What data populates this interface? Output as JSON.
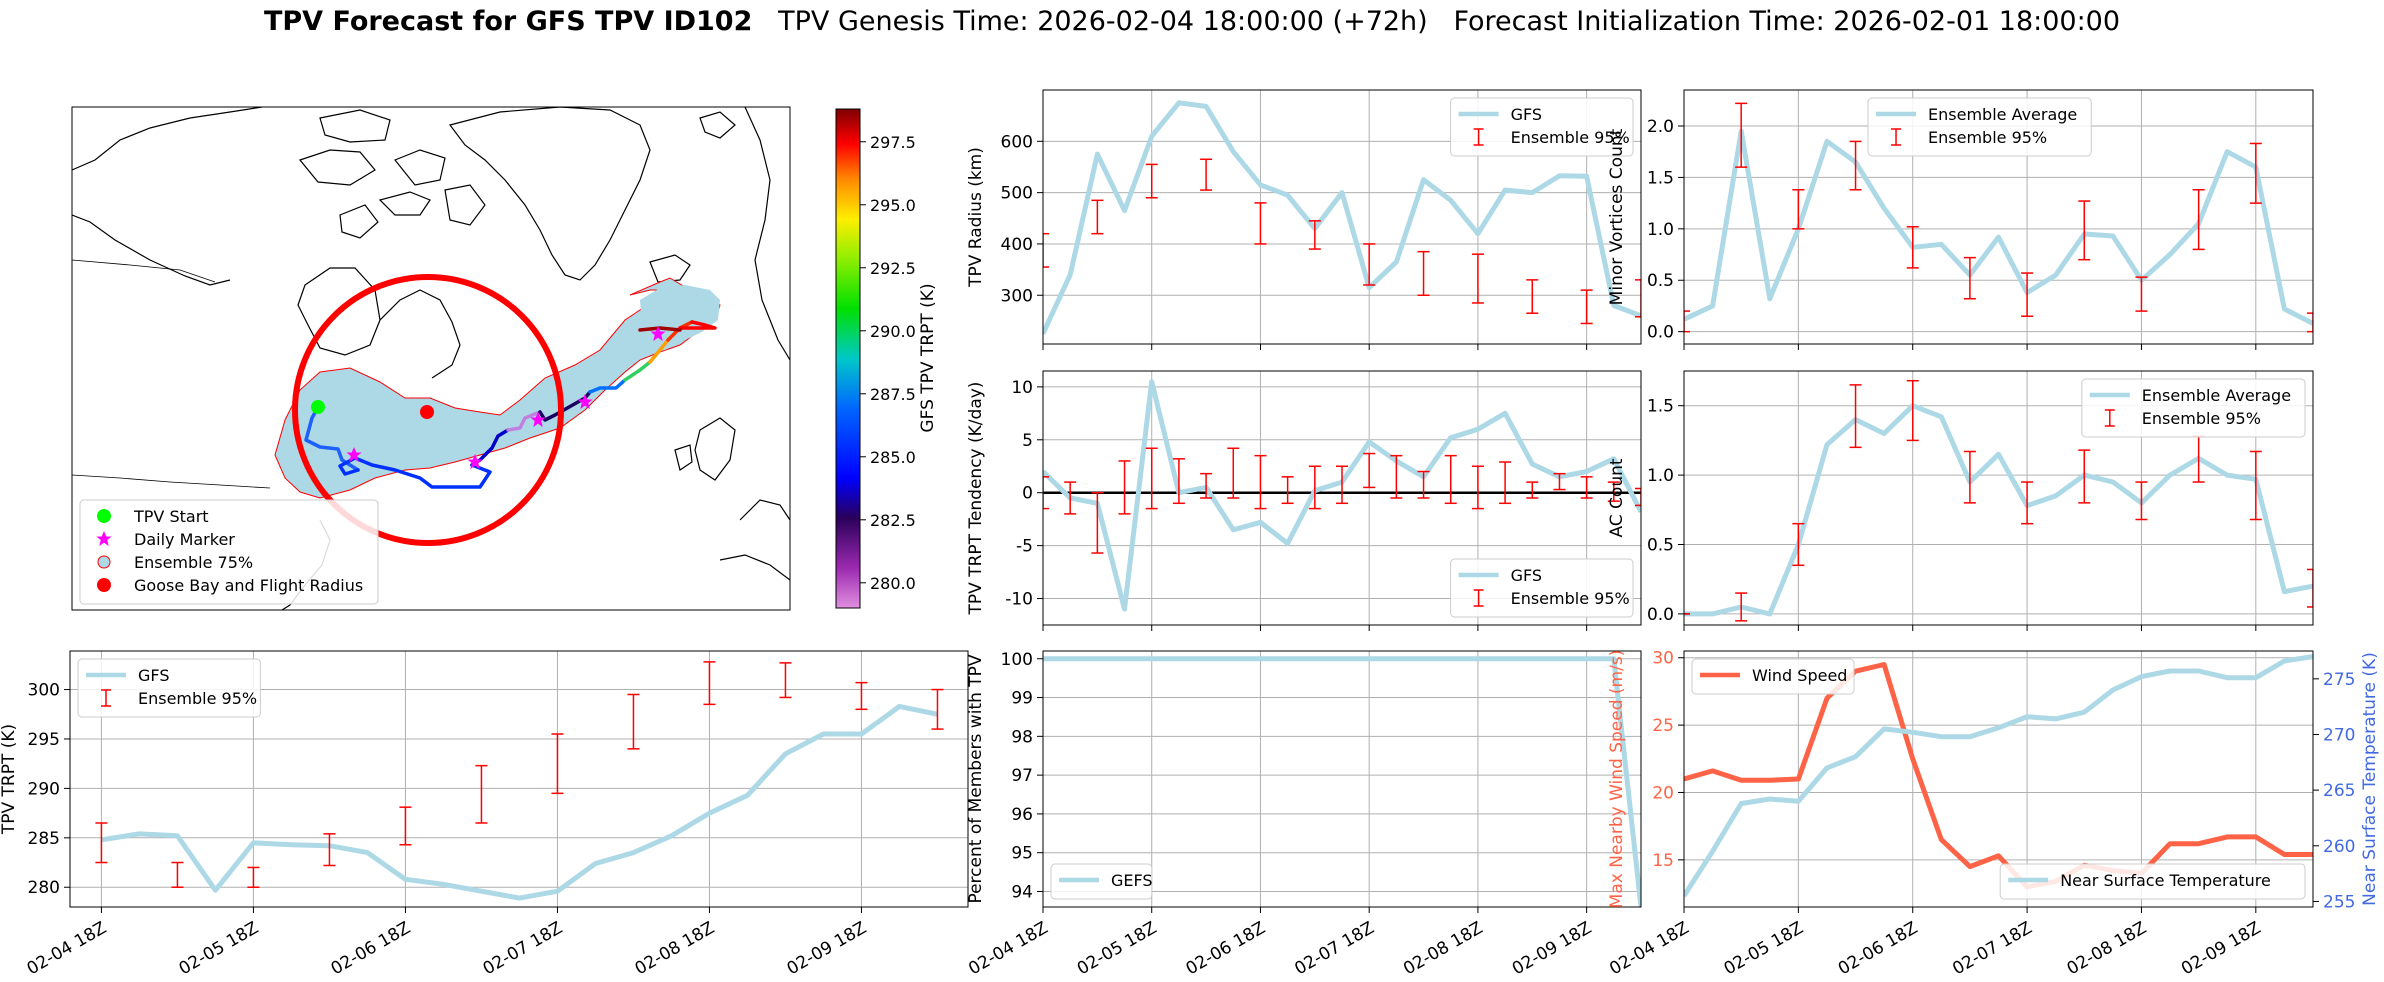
{
  "title": {
    "bold": "TPV Forecast for GFS TPV ID102",
    "genesis": "TPV Genesis Time: 2026-02-04 18:00:00 (+72h)",
    "init": "Forecast Initialization Time: 2026-02-01 18:00:00"
  },
  "colors": {
    "light_blue": "#add8e6",
    "errbar": "#ff0000",
    "tomato": "#ff6347",
    "royal_blue": "#4169e1",
    "grid": "#b0b0b0"
  },
  "time_axis": {
    "tick_labels": [
      "02-04 18Z",
      "02-05 18Z",
      "02-06 18Z",
      "02-07 18Z",
      "02-08 18Z",
      "02-09 18Z"
    ]
  },
  "map": {
    "colorbar": {
      "label": "GFS TPV TRPT (K)",
      "ticks": [
        280.0,
        282.5,
        285.0,
        287.5,
        290.0,
        292.5,
        295.0,
        297.5
      ],
      "tick_labels": [
        "280.0",
        "282.5",
        "285.0",
        "287.5",
        "290.0",
        "292.5",
        "295.0",
        "297.5"
      ],
      "range": [
        279.0,
        298.8
      ],
      "colormap": "nipy_spectral-like (violet → purple → blue → cyan → green → yellow → orange → red → dark red)"
    },
    "legend": [
      {
        "label": "TPV Start",
        "marker": "green-circle",
        "color": "#00ff00"
      },
      {
        "label": "Daily Marker",
        "marker": "magenta-star",
        "color": "#ff00ff"
      },
      {
        "label": "Ensemble 75%",
        "marker": "lightblue-circle-red-edge",
        "color": "#add8e6"
      },
      {
        "label": "Goose Bay and Flight Radius",
        "marker": "red-circle",
        "color": "#ff0000"
      }
    ]
  },
  "chart_data": [
    {
      "id": "radius",
      "type": "line",
      "ylabel": "TPV Radius (km)",
      "yticks": [
        300,
        400,
        500,
        600
      ],
      "ylim": [
        205,
        700
      ],
      "legend": {
        "loc": "upper-right",
        "entries": [
          "GFS",
          "Ensemble 95%"
        ]
      },
      "series": [
        {
          "name": "GFS",
          "values": [
            225,
            340,
            575,
            465,
            610,
            675,
            668,
            580,
            515,
            495,
            430,
            500,
            315,
            365,
            525,
            485,
            420,
            505,
            500,
            533,
            532,
            280,
            260
          ]
        }
      ],
      "errorbars": {
        "name": "Ensemble 95%",
        "x_index": [
          0,
          2,
          4,
          6,
          8,
          10,
          12,
          14,
          16,
          18,
          20,
          22
        ],
        "low": [
          355,
          420,
          490,
          505,
          400,
          390,
          320,
          300,
          285,
          265,
          245,
          258
        ],
        "high": [
          420,
          485,
          555,
          565,
          480,
          445,
          400,
          385,
          380,
          330,
          310,
          330
        ]
      }
    },
    {
      "id": "minor",
      "type": "line",
      "ylabel": "Minor Vortices Count",
      "yticks": [
        0.0,
        0.5,
        1.0,
        1.5,
        2.0
      ],
      "ytick_labels": [
        "0.0",
        "0.5",
        "1.0",
        "1.5",
        "2.0"
      ],
      "ylim": [
        -0.12,
        2.35
      ],
      "legend": {
        "loc": "upper-center",
        "entries": [
          "Ensemble Average",
          "Ensemble 95%"
        ]
      },
      "series": [
        {
          "name": "Ensemble Average",
          "values": [
            0.12,
            0.25,
            1.95,
            0.32,
            1.0,
            1.85,
            1.65,
            1.2,
            0.82,
            0.85,
            0.55,
            0.92,
            0.38,
            0.55,
            0.95,
            0.93,
            0.5,
            0.75,
            1.05,
            1.75,
            1.6,
            0.22,
            0.08
          ]
        }
      ],
      "errorbars": {
        "name": "Ensemble 95%",
        "x_index": [
          0,
          2,
          4,
          6,
          8,
          10,
          12,
          14,
          16,
          18,
          20,
          22
        ],
        "low": [
          0.0,
          1.6,
          1.0,
          1.38,
          0.62,
          0.32,
          0.15,
          0.7,
          0.2,
          0.8,
          1.25,
          0.0
        ],
        "high": [
          0.2,
          2.22,
          1.38,
          1.85,
          1.02,
          0.72,
          0.57,
          1.27,
          0.53,
          1.38,
          1.83,
          0.18
        ]
      }
    },
    {
      "id": "tendency",
      "type": "line",
      "ylabel": "TPV TRPT Tendency (K/day)",
      "yticks": [
        -10,
        -5,
        0,
        5,
        10
      ],
      "ylim": [
        -12.5,
        11.5
      ],
      "zero_line": true,
      "legend": {
        "loc": "lower-right",
        "entries": [
          "GFS",
          "Ensemble 95%"
        ]
      },
      "series": [
        {
          "name": "GFS",
          "values": [
            2.0,
            -0.5,
            -1.0,
            -11.0,
            10.5,
            0.0,
            0.5,
            -3.5,
            -2.8,
            -4.8,
            0.2,
            1.0,
            4.8,
            3.0,
            1.5,
            5.2,
            6.0,
            7.5,
            2.7,
            1.5,
            2.0,
            3.2,
            -1.8
          ]
        }
      ],
      "errorbars": {
        "name": "Ensemble 95%",
        "x_index": [
          0,
          1,
          2,
          3,
          4,
          5,
          6,
          7,
          8,
          9,
          10,
          11,
          12,
          13,
          14,
          15,
          16,
          17,
          18,
          19,
          20,
          21,
          22
        ],
        "low": [
          -1.5,
          -2.0,
          -5.7,
          -2.0,
          -1.5,
          -1.0,
          -0.5,
          -0.5,
          -1.5,
          -1.0,
          -1.5,
          -1.0,
          0.5,
          -0.5,
          -0.5,
          -1.0,
          -1.5,
          -1.0,
          -0.5,
          0.3,
          -0.5,
          -0.8,
          -1.2
        ],
        "high": [
          1.5,
          1.0,
          0.0,
          3.0,
          4.2,
          3.2,
          1.8,
          4.2,
          3.5,
          1.5,
          2.5,
          2.5,
          3.7,
          3.5,
          2.0,
          3.5,
          2.5,
          2.9,
          1.0,
          1.8,
          1.5,
          1.0,
          0.4
        ]
      }
    },
    {
      "id": "ac",
      "type": "line",
      "ylabel": "AC Count",
      "yticks": [
        0.0,
        0.5,
        1.0,
        1.5
      ],
      "ytick_labels": [
        "0.0",
        "0.5",
        "1.0",
        "1.5"
      ],
      "ylim": [
        -0.08,
        1.75
      ],
      "legend": {
        "loc": "upper-right",
        "entries": [
          "Ensemble Average",
          "Ensemble 95%"
        ]
      },
      "series": [
        {
          "name": "Ensemble Average",
          "values": [
            0.0,
            0.0,
            0.05,
            0.0,
            0.5,
            1.22,
            1.4,
            1.3,
            1.5,
            1.42,
            0.95,
            1.15,
            0.78,
            0.85,
            1.0,
            0.95,
            0.8,
            1.0,
            1.12,
            1.0,
            0.97,
            0.16,
            0.2
          ]
        }
      ],
      "errorbars": {
        "name": "Ensemble 95%",
        "x_index": [
          0,
          2,
          4,
          6,
          8,
          10,
          12,
          14,
          16,
          18,
          20,
          22
        ],
        "low": [
          0.0,
          -0.05,
          0.35,
          1.2,
          1.25,
          0.8,
          0.65,
          0.8,
          0.68,
          0.95,
          0.68,
          0.05
        ],
        "high": [
          0.0,
          0.15,
          0.65,
          1.65,
          1.68,
          1.17,
          0.95,
          1.18,
          0.95,
          1.28,
          1.17,
          0.32
        ]
      }
    },
    {
      "id": "trpt",
      "type": "line",
      "ylabel": "TPV TRPT (K)",
      "yticks": [
        280,
        285,
        290,
        295,
        300
      ],
      "ylim": [
        278,
        303.9
      ],
      "legend": {
        "loc": "upper-left",
        "entries": [
          "GFS",
          "Ensemble 95%"
        ]
      },
      "series": [
        {
          "name": "GFS",
          "values": [
            284.8,
            285.4,
            285.2,
            279.7,
            284.5,
            284.3,
            284.2,
            283.5,
            280.8,
            280.3,
            279.6,
            278.9,
            279.6,
            282.4,
            283.5,
            285.2,
            287.5,
            289.3,
            293.5,
            295.5,
            295.5,
            298.3,
            297.5
          ]
        }
      ],
      "errorbars": {
        "name": "Ensemble 95%",
        "x_index": [
          0,
          2,
          4,
          6,
          8,
          10,
          12,
          14,
          16,
          18,
          20,
          22
        ],
        "low": [
          282.5,
          280.0,
          280.0,
          282.2,
          284.3,
          286.5,
          289.5,
          294.0,
          298.5,
          299.2,
          298.0,
          296.0
        ],
        "high": [
          286.5,
          282.5,
          282.0,
          285.4,
          288.1,
          292.3,
          295.5,
          299.5,
          302.8,
          302.7,
          300.7,
          300.0
        ]
      }
    },
    {
      "id": "members",
      "type": "line",
      "ylabel": "Percent of Members with TPV",
      "yticks": [
        94,
        95,
        96,
        97,
        98,
        99,
        100
      ],
      "ylim": [
        93.6,
        100.2
      ],
      "legend": {
        "loc": "lower-left",
        "entries": [
          "GEFS"
        ]
      },
      "series": [
        {
          "name": "GEFS",
          "values": [
            100,
            100,
            100,
            100,
            100,
            100,
            100,
            100,
            100,
            100,
            100,
            100,
            100,
            100,
            100,
            100,
            100,
            100,
            100,
            100,
            100,
            100,
            93.6
          ]
        }
      ]
    },
    {
      "id": "wind_temp",
      "type": "line",
      "ylabel_left": "Max Nearby Wind Speed (m/s)",
      "ylabel_right": "Near Surface Temperature (K)",
      "yticks_left": [
        15,
        20,
        25,
        30
      ],
      "ylim_left": [
        11.5,
        30.5
      ],
      "yticks_right": [
        255,
        260,
        265,
        270,
        275
      ],
      "ylim_right": [
        254.5,
        277.5
      ],
      "legend_left": {
        "loc": "upper-left",
        "entries": [
          "Wind Speed"
        ]
      },
      "legend_right": {
        "loc": "lower-right",
        "entries": [
          "Near Surface Temperature"
        ]
      },
      "series": [
        {
          "name": "Wind Speed",
          "axis": "left",
          "values": [
            21.0,
            21.6,
            20.9,
            20.9,
            21.0,
            27.0,
            29.0,
            29.5,
            22.5,
            16.5,
            14.5,
            15.3,
            13.0,
            13.4,
            14.6,
            14.2,
            14.0,
            16.2,
            16.2,
            16.7,
            16.7,
            15.4,
            15.4
          ]
        },
        {
          "name": "Near Surface Temperature",
          "axis": "right",
          "values": [
            255.5,
            259.5,
            263.8,
            264.2,
            264.0,
            267.0,
            268.0,
            270.5,
            270.2,
            269.8,
            269.8,
            270.6,
            271.6,
            271.4,
            272.0,
            274.0,
            275.2,
            275.7,
            275.7,
            275.1,
            275.1,
            276.6,
            277.0
          ]
        }
      ]
    }
  ]
}
